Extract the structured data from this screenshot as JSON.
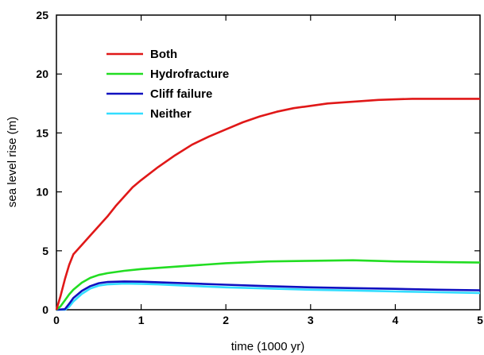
{
  "chart_data": {
    "type": "line",
    "title": "",
    "xlabel": "time (1000 yr)",
    "ylabel": "sea level rise (m)",
    "xlim": [
      0,
      5
    ],
    "ylim": [
      0,
      25
    ],
    "x_ticks": [
      "0",
      "1",
      "2",
      "3",
      "4",
      "5"
    ],
    "y_ticks": [
      "0",
      "5",
      "10",
      "15",
      "20",
      "25"
    ],
    "grid": false,
    "legend_position": "top-left",
    "series": [
      {
        "name": "Both",
        "color": "#e01818",
        "x": [
          0,
          0.05,
          0.1,
          0.15,
          0.2,
          0.3,
          0.4,
          0.5,
          0.6,
          0.7,
          0.8,
          0.9,
          1.0,
          1.2,
          1.4,
          1.6,
          1.8,
          2.0,
          2.2,
          2.4,
          2.6,
          2.8,
          3.0,
          3.2,
          3.4,
          3.6,
          3.8,
          4.0,
          4.2,
          4.4,
          4.6,
          4.8,
          5.0
        ],
        "y": [
          0,
          1.2,
          2.6,
          3.8,
          4.7,
          5.5,
          6.3,
          7.1,
          7.9,
          8.8,
          9.6,
          10.4,
          11.0,
          12.1,
          13.1,
          14.0,
          14.7,
          15.3,
          15.9,
          16.4,
          16.8,
          17.1,
          17.3,
          17.5,
          17.6,
          17.7,
          17.8,
          17.85,
          17.9,
          17.9,
          17.9,
          17.9,
          17.9
        ]
      },
      {
        "name": "Hydrofracture",
        "color": "#22dd22",
        "x": [
          0,
          0.05,
          0.1,
          0.15,
          0.2,
          0.3,
          0.4,
          0.5,
          0.6,
          0.8,
          1.0,
          1.2,
          1.5,
          2.0,
          2.5,
          3.0,
          3.5,
          4.0,
          4.5,
          5.0
        ],
        "y": [
          0,
          0.3,
          0.8,
          1.3,
          1.7,
          2.3,
          2.7,
          2.95,
          3.1,
          3.3,
          3.45,
          3.55,
          3.7,
          3.95,
          4.1,
          4.15,
          4.2,
          4.1,
          4.05,
          4.0
        ]
      },
      {
        "name": "Cliff failure",
        "color": "#1010c0",
        "x": [
          0,
          0.1,
          0.15,
          0.2,
          0.3,
          0.4,
          0.5,
          0.6,
          0.8,
          1.0,
          1.2,
          1.5,
          2.0,
          2.5,
          3.0,
          3.5,
          4.0,
          4.5,
          5.0
        ],
        "y": [
          0,
          0.05,
          0.5,
          1.0,
          1.6,
          2.0,
          2.25,
          2.35,
          2.4,
          2.38,
          2.33,
          2.25,
          2.12,
          2.0,
          1.9,
          1.83,
          1.77,
          1.7,
          1.65
        ]
      },
      {
        "name": "Neither",
        "color": "#33ddff",
        "x": [
          0,
          0.1,
          0.15,
          0.2,
          0.3,
          0.4,
          0.5,
          0.6,
          0.8,
          1.0,
          1.2,
          1.5,
          2.0,
          2.5,
          3.0,
          3.5,
          4.0,
          4.5,
          5.0
        ],
        "y": [
          0,
          0.0,
          0.25,
          0.7,
          1.35,
          1.8,
          2.05,
          2.15,
          2.22,
          2.2,
          2.15,
          2.05,
          1.9,
          1.8,
          1.7,
          1.63,
          1.55,
          1.48,
          1.42
        ]
      }
    ]
  }
}
